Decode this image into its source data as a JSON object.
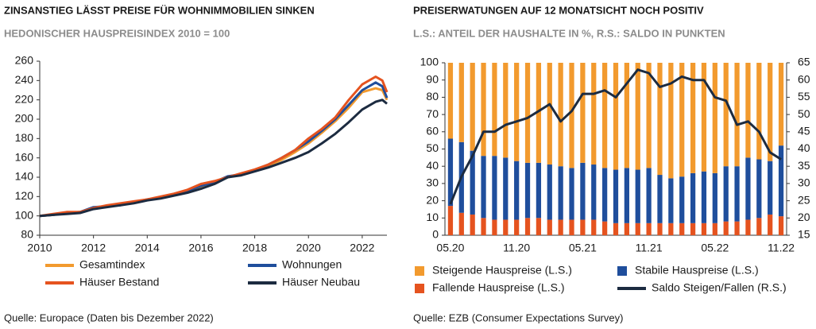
{
  "chart_data": [
    {
      "type": "line",
      "title": "ZINSANSTIEG LÄSST PREISE FÜR WOHNIMMOBILIEN SINKEN",
      "subtitle": "HEDONISCHER HAUSPREISINDEX 2010 = 100",
      "source": "Quelle: Europace (Daten bis Dezember 2022)",
      "x": [
        2010,
        2010.5,
        2011,
        2011.5,
        2012,
        2012.5,
        2013,
        2013.5,
        2014,
        2014.5,
        2015,
        2015.5,
        2016,
        2016.5,
        2017,
        2017.5,
        2018,
        2018.5,
        2019,
        2019.5,
        2020,
        2020.5,
        2021,
        2021.5,
        2022,
        2022.5,
        2022.75,
        2022.92
      ],
      "xlim": [
        2010,
        2022.92
      ],
      "xticks": [
        2010,
        2012,
        2014,
        2016,
        2018,
        2020,
        2022
      ],
      "ylim": [
        80,
        260
      ],
      "yticks": [
        80,
        100,
        120,
        140,
        160,
        180,
        200,
        220,
        240,
        260
      ],
      "series": [
        {
          "name": "Gesamtindex",
          "color": "#f29a2e",
          "values": [
            100,
            101,
            103,
            104,
            108,
            110,
            112,
            114,
            117,
            119,
            122,
            125,
            130,
            134,
            140,
            143,
            147,
            152,
            158,
            166,
            175,
            186,
            198,
            212,
            228,
            232,
            230,
            220
          ]
        },
        {
          "name": "Wohnungen",
          "color": "#1f4e9c",
          "values": [
            100,
            101,
            103,
            104,
            109,
            110,
            111,
            114,
            117,
            119,
            122,
            126,
            131,
            135,
            141,
            143,
            147,
            153,
            160,
            168,
            177,
            188,
            200,
            215,
            230,
            238,
            234,
            222
          ]
        },
        {
          "name": "Häuser Bestand",
          "color": "#e5531f",
          "values": [
            100,
            102,
            104,
            104,
            108,
            111,
            113,
            115,
            117,
            120,
            123,
            127,
            133,
            136,
            140,
            144,
            148,
            153,
            160,
            168,
            180,
            190,
            202,
            220,
            236,
            244,
            240,
            228
          ]
        },
        {
          "name": "Häuser Neubau",
          "color": "#1c2b40",
          "values": [
            100,
            101,
            102,
            103,
            107,
            109,
            111,
            113,
            116,
            118,
            121,
            124,
            128,
            133,
            140,
            142,
            146,
            150,
            155,
            160,
            166,
            175,
            185,
            197,
            210,
            218,
            220,
            216
          ]
        }
      ]
    },
    {
      "type": "bar",
      "title": "PREISERWATUNGEN AUF 12 MONATSICHT NOCH POSITIV",
      "subtitle": "L.S.: ANTEIL DER HAUSHALTE IN %, R.S.: SALDO IN PUNKTEN",
      "source": "Quelle: EZB (Consumer Expectations Survey)",
      "categories": [
        "05.20",
        null,
        null,
        null,
        null,
        null,
        "11.20",
        null,
        null,
        null,
        null,
        null,
        "05.21",
        null,
        null,
        null,
        null,
        null,
        "11.21",
        null,
        null,
        null,
        null,
        null,
        "05.22",
        null,
        null,
        null,
        null,
        null,
        "11.22"
      ],
      "ylim": [
        0,
        100
      ],
      "yticks": [
        0,
        10,
        20,
        30,
        40,
        50,
        60,
        70,
        80,
        90,
        100
      ],
      "y2lim": [
        15,
        65
      ],
      "y2ticks": [
        15,
        20,
        25,
        30,
        35,
        40,
        45,
        50,
        55,
        60,
        65
      ],
      "series": [
        {
          "name": "Steigende Hauspreise (L.S.)",
          "color": "#f29a2e",
          "values": [
            44,
            46,
            51,
            54,
            54,
            55,
            57,
            58,
            58,
            59,
            60,
            61,
            58,
            59,
            61,
            62,
            61,
            62,
            61,
            65,
            67,
            66,
            64,
            63,
            64,
            60,
            60,
            55,
            56,
            57,
            48
          ]
        },
        {
          "name": "Stabile Hauspreise (L.S.)",
          "color": "#1f4e9c",
          "values": [
            39,
            41,
            37,
            36,
            37,
            36,
            34,
            32,
            32,
            32,
            31,
            30,
            33,
            32,
            31,
            31,
            32,
            31,
            32,
            28,
            26,
            27,
            29,
            30,
            29,
            32,
            32,
            36,
            34,
            31,
            41
          ]
        },
        {
          "name": "Fallende Hauspreise (L.S.)",
          "color": "#e5531f",
          "values": [
            17,
            13,
            12,
            10,
            9,
            9,
            9,
            10,
            10,
            9,
            9,
            9,
            9,
            9,
            8,
            7,
            7,
            7,
            7,
            7,
            7,
            7,
            7,
            7,
            7,
            8,
            8,
            9,
            10,
            12,
            11
          ]
        },
        {
          "name": "Saldo Steigen/Fallen (R.S.)",
          "color": "#1c2b40",
          "type": "line",
          "axis": "y2",
          "values": [
            24,
            32,
            38,
            45,
            45,
            47,
            48,
            49,
            51,
            53,
            48,
            51,
            56,
            56,
            57,
            55,
            59,
            63,
            62,
            58,
            59,
            61,
            60,
            60,
            55,
            54,
            47,
            48,
            45,
            39,
            37
          ]
        }
      ]
    }
  ]
}
